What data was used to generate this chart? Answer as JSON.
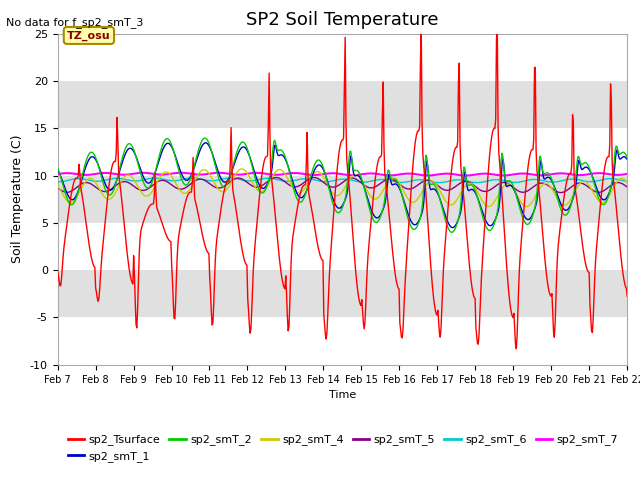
{
  "title": "SP2 Soil Temperature",
  "ylabel": "Soil Temperature (C)",
  "xlabel": "Time",
  "no_data_text": "No data for f_sp2_smT_3",
  "tz_label": "TZ_osu",
  "ylim": [
    -10,
    25
  ],
  "yticks": [
    -10,
    -5,
    0,
    5,
    10,
    15,
    20,
    25
  ],
  "xtick_labels": [
    "Feb 7",
    "Feb 8",
    "Feb 9",
    "Feb 10",
    "Feb 11",
    "Feb 12",
    "Feb 13",
    "Feb 14",
    "Feb 15",
    "Feb 16",
    "Feb 17",
    "Feb 18",
    "Feb 19",
    "Feb 20",
    "Feb 21",
    "Feb 22"
  ],
  "colors": {
    "sp2_Tsurface": "#ff0000",
    "sp2_smT_1": "#0000cc",
    "sp2_smT_2": "#00cc00",
    "sp2_smT_4": "#cccc00",
    "sp2_smT_5": "#880088",
    "sp2_smT_6": "#00cccc",
    "sp2_smT_7": "#ff00ff"
  },
  "background_color": "#ffffff",
  "plot_bg_color": "#e0e0e0",
  "grid_color": "#ffffff"
}
